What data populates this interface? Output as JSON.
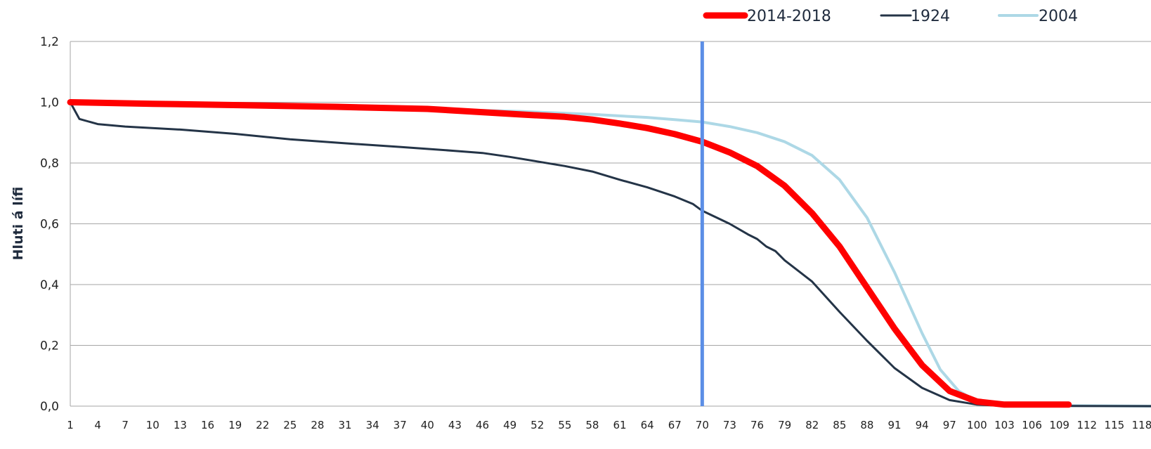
{
  "chart_data": {
    "type": "line",
    "ylabel": "Hluti á lífi",
    "xlabel": "",
    "ylim": [
      0.0,
      1.2
    ],
    "yticks": [
      "0,0",
      "0,2",
      "0,4",
      "0,6",
      "0,8",
      "1,0",
      "1,2"
    ],
    "x_tick_labels": [
      "1",
      "4",
      "7",
      "10",
      "13",
      "16",
      "19",
      "22",
      "25",
      "28",
      "31",
      "34",
      "37",
      "40",
      "43",
      "46",
      "49",
      "52",
      "55",
      "58",
      "61",
      "64",
      "67",
      "70",
      "73",
      "76",
      "79",
      "82",
      "85",
      "88",
      "91",
      "94",
      "97",
      "100",
      "103",
      "106",
      "109",
      "112",
      "115",
      "118"
    ],
    "x_range": [
      1,
      119
    ],
    "grid": "horizontal",
    "legend_position": "top-right",
    "reference_line": {
      "x": 70,
      "color": "#5b8ee6"
    },
    "series": [
      {
        "name": "2014-2018",
        "color": "#ff0000",
        "width": 9,
        "points": [
          [
            1,
            1.0
          ],
          [
            10,
            0.995
          ],
          [
            20,
            0.99
          ],
          [
            30,
            0.985
          ],
          [
            40,
            0.978
          ],
          [
            50,
            0.96
          ],
          [
            55,
            0.952
          ],
          [
            58,
            0.943
          ],
          [
            61,
            0.93
          ],
          [
            64,
            0.915
          ],
          [
            67,
            0.895
          ],
          [
            70,
            0.87
          ],
          [
            73,
            0.835
          ],
          [
            76,
            0.79
          ],
          [
            79,
            0.725
          ],
          [
            82,
            0.635
          ],
          [
            85,
            0.525
          ],
          [
            88,
            0.39
          ],
          [
            91,
            0.255
          ],
          [
            94,
            0.135
          ],
          [
            97,
            0.05
          ],
          [
            100,
            0.015
          ],
          [
            103,
            0.005
          ],
          [
            106,
            0.005
          ],
          [
            110,
            0.005
          ]
        ]
      },
      {
        "name": "1924",
        "color": "#243447",
        "width": 3,
        "points": [
          [
            1,
            1.0
          ],
          [
            2,
            0.945
          ],
          [
            4,
            0.928
          ],
          [
            7,
            0.92
          ],
          [
            13,
            0.91
          ],
          [
            19,
            0.896
          ],
          [
            25,
            0.878
          ],
          [
            31,
            0.865
          ],
          [
            37,
            0.853
          ],
          [
            43,
            0.84
          ],
          [
            46,
            0.833
          ],
          [
            49,
            0.82
          ],
          [
            52,
            0.805
          ],
          [
            55,
            0.79
          ],
          [
            58,
            0.772
          ],
          [
            61,
            0.745
          ],
          [
            64,
            0.72
          ],
          [
            67,
            0.69
          ],
          [
            69,
            0.665
          ],
          [
            70,
            0.643
          ],
          [
            73,
            0.6
          ],
          [
            75,
            0.565
          ],
          [
            76,
            0.55
          ],
          [
            77,
            0.525
          ],
          [
            78,
            0.51
          ],
          [
            79,
            0.48
          ],
          [
            82,
            0.41
          ],
          [
            85,
            0.31
          ],
          [
            88,
            0.215
          ],
          [
            91,
            0.125
          ],
          [
            94,
            0.06
          ],
          [
            97,
            0.02
          ],
          [
            100,
            0.005
          ],
          [
            103,
            0.001
          ],
          [
            119,
            0.0
          ]
        ]
      },
      {
        "name": "2004",
        "color": "#add8e6",
        "width": 4,
        "points": [
          [
            1,
            1.0
          ],
          [
            10,
            0.995
          ],
          [
            20,
            0.99
          ],
          [
            30,
            0.985
          ],
          [
            40,
            0.978
          ],
          [
            50,
            0.97
          ],
          [
            58,
            0.96
          ],
          [
            64,
            0.95
          ],
          [
            67,
            0.943
          ],
          [
            70,
            0.935
          ],
          [
            73,
            0.92
          ],
          [
            76,
            0.9
          ],
          [
            79,
            0.87
          ],
          [
            82,
            0.825
          ],
          [
            85,
            0.745
          ],
          [
            88,
            0.62
          ],
          [
            91,
            0.44
          ],
          [
            94,
            0.24
          ],
          [
            96,
            0.12
          ],
          [
            98,
            0.05
          ],
          [
            100,
            0.015
          ],
          [
            103,
            0.003
          ],
          [
            119,
            0.0
          ]
        ]
      }
    ]
  }
}
